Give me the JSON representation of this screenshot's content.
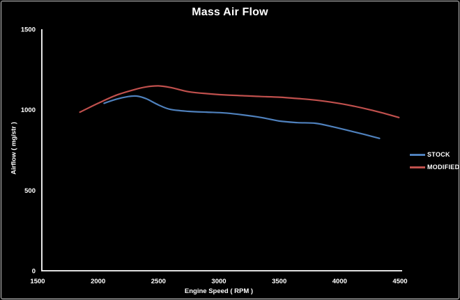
{
  "window": {
    "background": "#000000",
    "border_color": "#c9c9c9",
    "text_color": "#ffffff"
  },
  "chart_data": {
    "type": "line",
    "title": "Mass Air Flow",
    "xlabel": "Engine Speed ( RPM )",
    "ylabel": "Airflow ( mg/str )",
    "xlim": [
      1500,
      4500
    ],
    "ylim": [
      0,
      1500
    ],
    "x_ticks": [
      1500,
      2000,
      2500,
      3000,
      3500,
      4000,
      4500
    ],
    "y_ticks": [
      0,
      500,
      1000,
      1500
    ],
    "grid": false,
    "legend_position": "right",
    "axis_color": "#ffffff",
    "line_smoothing": true,
    "series": [
      {
        "name": "STOCK",
        "color": "#4f81bd",
        "x": [
          2050,
          2150,
          2250,
          2320,
          2400,
          2500,
          2600,
          2750,
          2900,
          3050,
          3200,
          3350,
          3500,
          3650,
          3800,
          3950,
          4100,
          4220,
          4330
        ],
        "y": [
          1040,
          1065,
          1082,
          1085,
          1068,
          1030,
          1002,
          990,
          985,
          980,
          968,
          952,
          930,
          920,
          916,
          893,
          866,
          844,
          822
        ]
      },
      {
        "name": "MODIFIED",
        "color": "#c0504d",
        "x": [
          1850,
          2000,
          2150,
          2300,
          2400,
          2500,
          2600,
          2750,
          2900,
          3050,
          3200,
          3350,
          3500,
          3650,
          3800,
          3950,
          4100,
          4250,
          4380,
          4490
        ],
        "y": [
          985,
          1040,
          1090,
          1125,
          1142,
          1148,
          1138,
          1112,
          1100,
          1092,
          1087,
          1082,
          1078,
          1070,
          1060,
          1045,
          1025,
          1000,
          975,
          952
        ]
      }
    ]
  }
}
